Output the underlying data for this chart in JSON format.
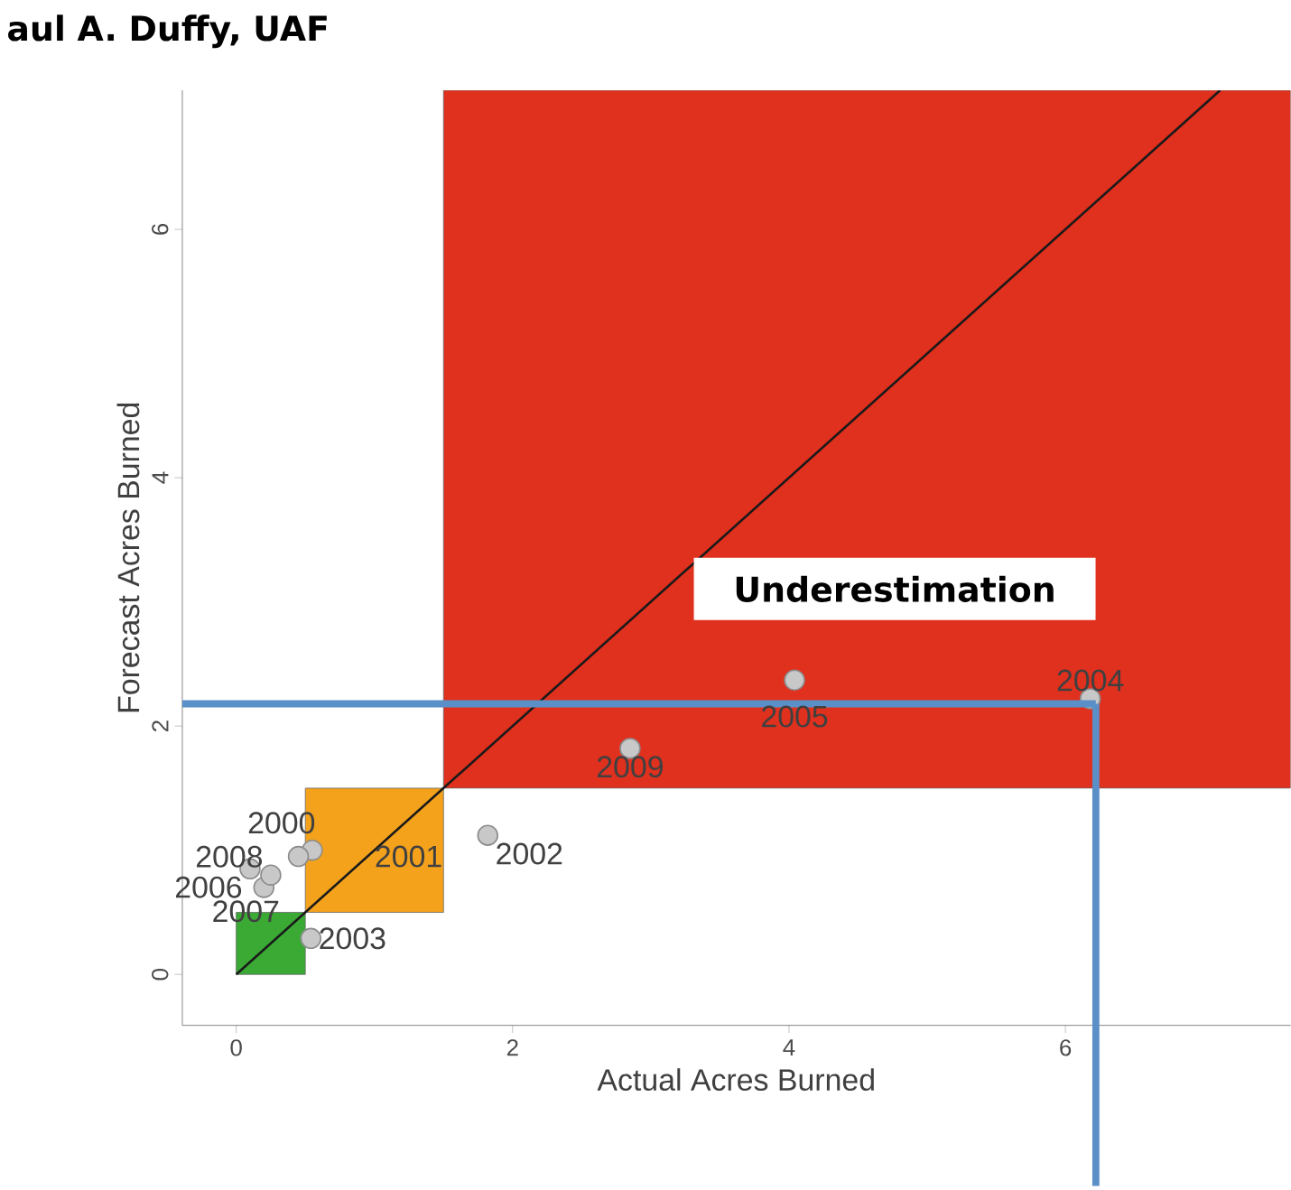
{
  "chart_data": {
    "type": "scatter",
    "xlabel": "Actual Acres Burned",
    "ylabel": "Forecast Acres Burned",
    "xlim": [
      -0.39,
      7.63
    ],
    "ylim": [
      -0.41,
      7.12
    ],
    "xticks": [
      0,
      2,
      4,
      6
    ],
    "yticks": [
      0,
      2,
      4,
      6
    ],
    "grid": false,
    "series": [
      {
        "type": "line",
        "marker": "none",
        "color": "#1a1a1a",
        "x": [
          0,
          7.12
        ],
        "values": [
          0,
          7.12
        ]
      },
      {
        "marker": "circle",
        "color": "#c8c8c8",
        "x": [
          0.55,
          0.45,
          1.82,
          0.54,
          6.18,
          4.04,
          0.1,
          0.2,
          0.25,
          2.85
        ],
        "values": [
          1.0,
          0.95,
          1.12,
          0.29,
          2.22,
          2.37,
          0.85,
          0.7,
          0.8,
          1.82
        ]
      }
    ],
    "bands": [
      {
        "axis": "x",
        "from": 0,
        "to": 0.5,
        "color": "#3aaa35"
      },
      {
        "axis": "x",
        "from": 0.5,
        "to": 1.5,
        "color": "#f4a21c"
      },
      {
        "axis": "x",
        "from": 1.5,
        "to": 7.63,
        "color": "#e0301e",
        "label": "Underestimation"
      }
    ],
    "ref_lines": [
      {
        "axis": "x",
        "value": 6.22,
        "color": "#5b8fc7"
      },
      {
        "axis": "y",
        "value": 2.18,
        "color": "#5b8fc7"
      }
    ],
    "annotations": [
      "aul A. Duffy, UAF",
      {
        "text": "2000",
        "x": 0.55,
        "y": 1.0
      },
      {
        "text": "2001",
        "x": 0.45,
        "y": 0.95
      },
      {
        "text": "2002",
        "x": 1.82,
        "y": 1.12
      },
      {
        "text": "2003",
        "x": 0.54,
        "y": 0.29
      },
      {
        "text": "2004",
        "x": 6.18,
        "y": 2.22
      },
      {
        "text": "2005",
        "x": 4.04,
        "y": 2.37
      },
      {
        "text": "2006",
        "x": 0.1,
        "y": 0.85
      },
      {
        "text": "2007",
        "x": 0.2,
        "y": 0.7
      },
      {
        "text": "2008",
        "x": 0.25,
        "y": 0.8
      },
      {
        "text": "2009",
        "x": 2.85,
        "y": 1.82
      }
    ]
  }
}
